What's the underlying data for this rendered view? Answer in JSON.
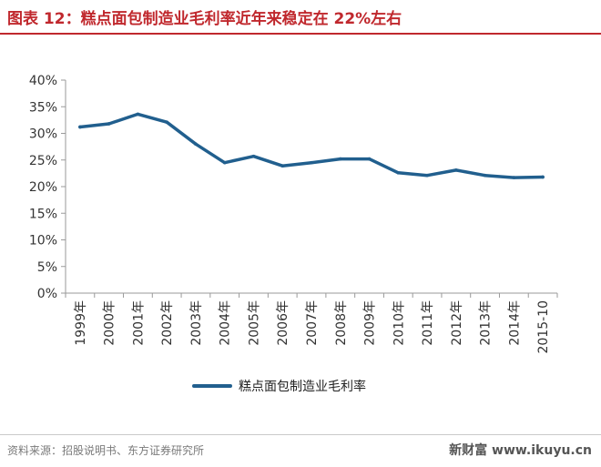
{
  "header": {
    "title": "图表 12：糕点面包制造业毛利率近年来稳定在 22%左右"
  },
  "chart_data": {
    "type": "line",
    "title": "",
    "xlabel": "",
    "ylabel": "",
    "categories": [
      "1999年",
      "2000年",
      "2001年",
      "2002年",
      "2003年",
      "2004年",
      "2005年",
      "2006年",
      "2007年",
      "2008年",
      "2009年",
      "2010年",
      "2011年",
      "2012年",
      "2013年",
      "2014年",
      "2015-10"
    ],
    "y_tick_labels": [
      "0%",
      "5%",
      "10%",
      "15%",
      "20%",
      "25%",
      "30%",
      "35%",
      "40%"
    ],
    "series": [
      {
        "name": "糕点面包制造业毛利率",
        "values": [
          31.2,
          31.8,
          33.6,
          32.1,
          28.0,
          24.5,
          25.7,
          23.9,
          24.5,
          25.2,
          25.2,
          22.6,
          22.1,
          23.1,
          22.1,
          21.7,
          21.8
        ],
        "color": "#215f8e"
      }
    ],
    "ylim": [
      0,
      40
    ],
    "grid": false,
    "legend_position": "bottom"
  },
  "footer": {
    "source": "资料来源：招股说明书、东方证券研究所",
    "watermark": "新财富 www.ikuyu.cn"
  }
}
